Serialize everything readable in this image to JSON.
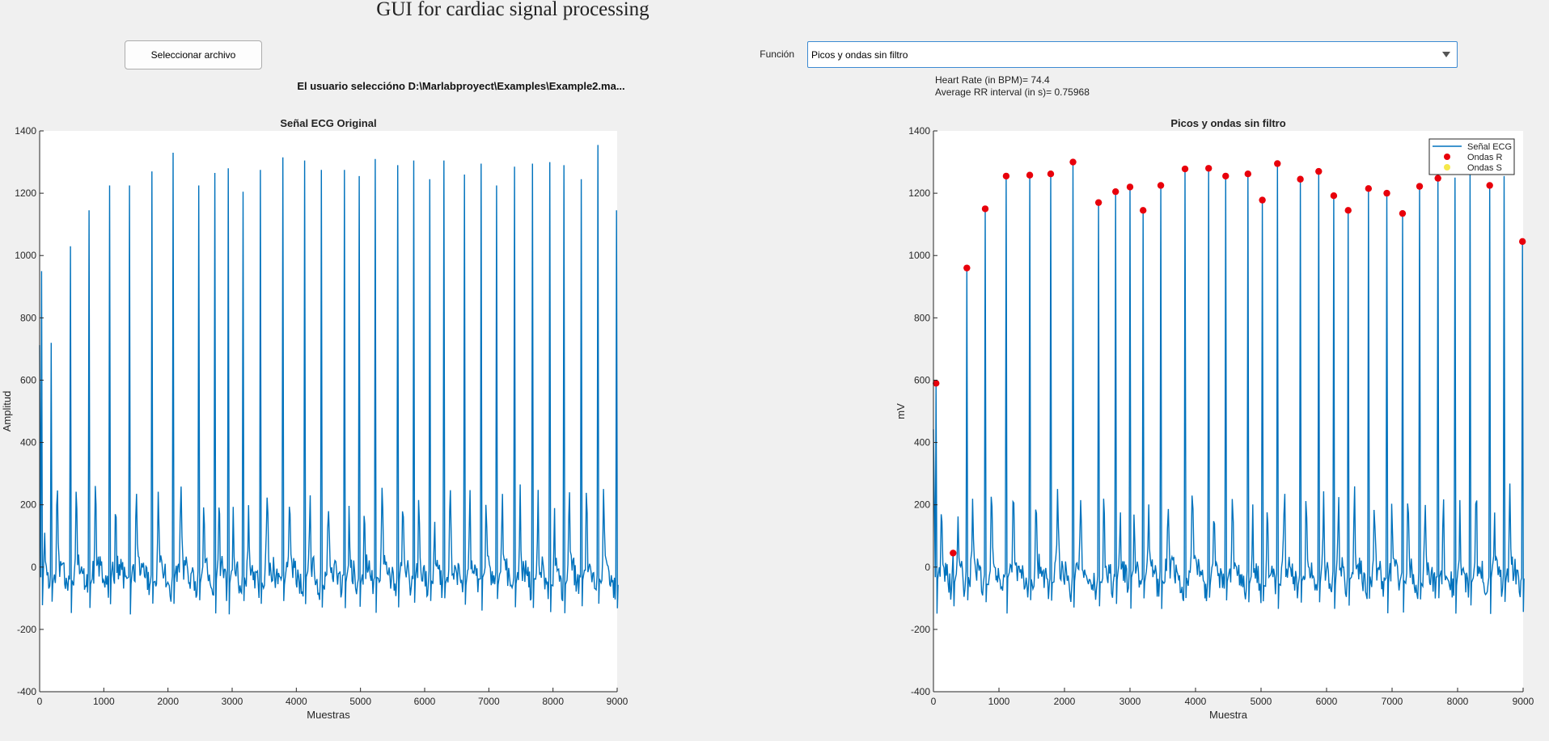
{
  "app": {
    "title": "GUI for cardiac signal processing"
  },
  "controls": {
    "select_file_label": "Seleccionar archivo",
    "selected_file_text": "El usuario seleccióno D:\\Marlabproyect\\Examples\\Example2.ma...",
    "function_label": "Función",
    "function_value": "Picos y ondas sin filtro"
  },
  "results": {
    "heart_rate": "Heart Rate (in BPM)= 74.4",
    "avg_rr": "Average RR interval (in s)= 0.75968"
  },
  "colors": {
    "signal": "#0072bd",
    "r_marker": "#e8000b",
    "s_marker": "#f5e84a",
    "axes_bg": "#ffffff",
    "window_bg": "#f0f0f0"
  },
  "chart_data": [
    {
      "type": "line",
      "title": "Señal ECG Original",
      "xlabel": "Muestras",
      "ylabel": "Amplitud",
      "xlim": [
        0,
        9000
      ],
      "ylim": [
        -400,
        1400
      ],
      "xticks": [
        0,
        1000,
        2000,
        3000,
        4000,
        5000,
        6000,
        7000,
        8000,
        9000
      ],
      "yticks": [
        -400,
        -200,
        0,
        200,
        400,
        600,
        800,
        1000,
        1200,
        1400
      ],
      "grid": false,
      "series": [
        {
          "name": "",
          "color": "#0072bd",
          "r_peaks": [
            [
              30,
              950
            ],
            [
              180,
              720
            ],
            [
              480,
              1030
            ],
            [
              770,
              1145
            ],
            [
              1090,
              1225
            ],
            [
              1400,
              1225
            ],
            [
              1750,
              1270
            ],
            [
              2080,
              1330
            ],
            [
              2480,
              1225
            ],
            [
              2730,
              1265
            ],
            [
              2940,
              1280
            ],
            [
              3170,
              1205
            ],
            [
              3440,
              1275
            ],
            [
              3790,
              1315
            ],
            [
              4130,
              1305
            ],
            [
              4390,
              1275
            ],
            [
              4750,
              1275
            ],
            [
              4980,
              1255
            ],
            [
              5230,
              1310
            ],
            [
              5580,
              1290
            ],
            [
              5830,
              1305
            ],
            [
              6080,
              1245
            ],
            [
              6300,
              1305
            ],
            [
              6620,
              1260
            ],
            [
              6880,
              1295
            ],
            [
              7120,
              1225
            ],
            [
              7400,
              1285
            ],
            [
              7680,
              1295
            ],
            [
              7950,
              1300
            ],
            [
              8170,
              1290
            ],
            [
              8440,
              1245
            ],
            [
              8700,
              1355
            ],
            [
              8990,
              1145
            ]
          ]
        }
      ]
    },
    {
      "type": "line",
      "title": "Picos y ondas sin filtro",
      "xlabel": "Muestra",
      "ylabel": "mV",
      "xlim": [
        0,
        9000
      ],
      "ylim": [
        -400,
        1400
      ],
      "xticks": [
        0,
        1000,
        2000,
        3000,
        4000,
        5000,
        6000,
        7000,
        8000,
        9000
      ],
      "yticks": [
        -400,
        -200,
        0,
        200,
        400,
        600,
        800,
        1000,
        1200,
        1400
      ],
      "grid": false,
      "legend": {
        "position": "top-right",
        "entries": [
          "Señal ECG",
          "Ondas R",
          "Ondas S"
        ]
      },
      "series": [
        {
          "name": "Señal ECG",
          "color": "#0072bd",
          "r_peaks": [
            [
              40,
              590
            ],
            [
              300,
              45
            ],
            [
              510,
              960
            ],
            [
              790,
              1150
            ],
            [
              1110,
              1255
            ],
            [
              1470,
              1258
            ],
            [
              1790,
              1262
            ],
            [
              2130,
              1300
            ],
            [
              2520,
              1170
            ],
            [
              2780,
              1205
            ],
            [
              3000,
              1220
            ],
            [
              3200,
              1145
            ],
            [
              3470,
              1225
            ],
            [
              3840,
              1278
            ],
            [
              4200,
              1280
            ],
            [
              4460,
              1255
            ],
            [
              4800,
              1262
            ],
            [
              5020,
              1178
            ],
            [
              5250,
              1295
            ],
            [
              5600,
              1245
            ],
            [
              5880,
              1270
            ],
            [
              6110,
              1192
            ],
            [
              6330,
              1145
            ],
            [
              6640,
              1215
            ],
            [
              6920,
              1200
            ],
            [
              7160,
              1135
            ],
            [
              7420,
              1222
            ],
            [
              7700,
              1248
            ],
            [
              7960,
              1250
            ],
            [
              8190,
              1260
            ],
            [
              8490,
              1225
            ],
            [
              8710,
              1255
            ],
            [
              8990,
              1045
            ]
          ]
        },
        {
          "name": "Ondas R",
          "color": "#e8000b",
          "x": [
            40,
            300,
            510,
            790,
            1110,
            1470,
            1790,
            2130,
            2520,
            2780,
            3000,
            3200,
            3470,
            3840,
            4200,
            4460,
            4800,
            5020,
            5250,
            5600,
            5880,
            6110,
            6330,
            6640,
            6920,
            7160,
            7420,
            7700,
            8490,
            8990
          ],
          "y": [
            590,
            45,
            960,
            1150,
            1255,
            1258,
            1262,
            1300,
            1170,
            1205,
            1220,
            1145,
            1225,
            1278,
            1280,
            1255,
            1262,
            1178,
            1295,
            1245,
            1270,
            1192,
            1145,
            1215,
            1200,
            1135,
            1222,
            1248,
            1225,
            1045
          ]
        },
        {
          "name": "Ondas S",
          "color": "#f5e84a",
          "x": [],
          "y": []
        }
      ]
    }
  ]
}
